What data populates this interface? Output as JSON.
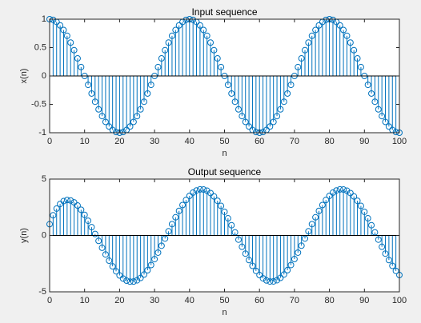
{
  "chart_data": [
    {
      "type": "stem",
      "title": "Input sequence",
      "xlabel": "n",
      "ylabel": "x(n)",
      "color": "#0072bd",
      "x": [
        0,
        1,
        2,
        3,
        4,
        5,
        6,
        7,
        8,
        9,
        10,
        11,
        12,
        13,
        14,
        15,
        16,
        17,
        18,
        19,
        20,
        21,
        22,
        23,
        24,
        25,
        26,
        27,
        28,
        29,
        30,
        31,
        32,
        33,
        34,
        35,
        36,
        37,
        38,
        39,
        40,
        41,
        42,
        43,
        44,
        45,
        46,
        47,
        48,
        49,
        50,
        51,
        52,
        53,
        54,
        55,
        56,
        57,
        58,
        59,
        60,
        61,
        62,
        63,
        64,
        65,
        66,
        67,
        68,
        69,
        70,
        71,
        72,
        73,
        74,
        75,
        76,
        77,
        78,
        79,
        80,
        81,
        82,
        83,
        84,
        85,
        86,
        87,
        88,
        89,
        90,
        91,
        92,
        93,
        94,
        95,
        96,
        97,
        98,
        99,
        100
      ],
      "values": [
        1,
        0.988,
        0.951,
        0.891,
        0.809,
        0.707,
        0.588,
        0.454,
        0.309,
        0.156,
        0,
        -0.156,
        -0.309,
        -0.454,
        -0.588,
        -0.707,
        -0.809,
        -0.891,
        -0.951,
        -0.988,
        -1,
        -0.988,
        -0.951,
        -0.891,
        -0.809,
        -0.707,
        -0.588,
        -0.454,
        -0.309,
        -0.156,
        0,
        0.156,
        0.309,
        0.454,
        0.588,
        0.707,
        0.809,
        0.891,
        0.951,
        0.988,
        1,
        0.988,
        0.951,
        0.891,
        0.809,
        0.707,
        0.588,
        0.454,
        0.309,
        0.156,
        0,
        -0.156,
        -0.309,
        -0.454,
        -0.588,
        -0.707,
        -0.809,
        -0.891,
        -0.951,
        -0.988,
        -1,
        -0.988,
        -0.951,
        -0.891,
        -0.809,
        -0.707,
        -0.588,
        -0.454,
        -0.309,
        -0.156,
        0,
        0.156,
        0.309,
        0.454,
        0.588,
        0.707,
        0.809,
        0.891,
        0.951,
        0.988,
        1,
        0.988,
        0.951,
        0.891,
        0.809,
        0.707,
        0.588,
        0.454,
        0.309,
        0.156,
        0,
        -0.156,
        -0.309,
        -0.454,
        -0.588,
        -0.707,
        -0.809,
        -0.891,
        -0.951,
        -0.988,
        -1
      ],
      "xlim": [
        0,
        100
      ],
      "xticks": [
        0,
        10,
        20,
        30,
        40,
        50,
        60,
        70,
        80,
        90,
        100
      ],
      "ylim": [
        -1,
        1
      ],
      "yticks": [
        -1,
        -0.5,
        0,
        0.5,
        1
      ]
    },
    {
      "type": "stem",
      "title": "Output sequence",
      "xlabel": "n",
      "ylabel": "y(n)",
      "color": "#0072bd",
      "x": [
        0,
        1,
        2,
        3,
        4,
        5,
        6,
        7,
        8,
        9,
        10,
        11,
        12,
        13,
        14,
        15,
        16,
        17,
        18,
        19,
        20,
        21,
        22,
        23,
        24,
        25,
        26,
        27,
        28,
        29,
        30,
        31,
        32,
        33,
        34,
        35,
        36,
        37,
        38,
        39,
        40,
        41,
        42,
        43,
        44,
        45,
        46,
        47,
        48,
        49,
        50,
        51,
        52,
        53,
        54,
        55,
        56,
        57,
        58,
        59,
        60,
        61,
        62,
        63,
        64,
        65,
        66,
        67,
        68,
        69,
        70,
        71,
        72,
        73,
        74,
        75,
        76,
        77,
        78,
        79,
        80,
        81,
        82,
        83,
        84,
        85,
        86,
        87,
        88,
        89,
        90,
        91,
        92,
        93,
        94,
        95,
        96,
        97,
        98,
        99,
        100
      ],
      "values": [
        1,
        1.788,
        2.381,
        2.796,
        3.046,
        3.144,
        3.103,
        2.936,
        2.658,
        2.282,
        1.826,
        1.305,
        0.735,
        0.134,
        -0.481,
        -1.092,
        -1.683,
        -2.237,
        -2.741,
        -3.181,
        -3.545,
        -3.824,
        -4.01,
        -4.099,
        -4.088,
        -3.977,
        -3.77,
        -3.47,
        -3.085,
        -2.624,
        -2.099,
        -1.523,
        -0.909,
        -0.273,
        0.37,
        1.003,
        1.611,
        2.18,
        2.695,
        3.144,
        3.515,
        3.8,
        3.991,
        4.084,
        4.076,
        3.968,
        3.762,
        3.464,
        3.08,
        2.62,
        2.096,
        1.521,
        0.908,
        0.272,
        -0.37,
        -1.003,
        -1.611,
        -2.18,
        -2.695,
        -3.144,
        -3.515,
        -3.8,
        -3.991,
        -4.084,
        -4.076,
        -3.968,
        -3.762,
        -3.464,
        -3.08,
        -2.62,
        -2.096,
        -1.521,
        -0.908,
        -0.272,
        0.37,
        1.003,
        1.611,
        2.18,
        2.695,
        3.144,
        3.515,
        3.8,
        3.991,
        4.084,
        4.076,
        3.968,
        3.762,
        3.464,
        3.08,
        2.62,
        2.096,
        1.521,
        0.908,
        0.272,
        -0.37,
        -1.003,
        -1.611,
        -2.18,
        -2.695,
        -3.144,
        -3.515
      ],
      "xlim": [
        0,
        100
      ],
      "xticks": [
        0,
        10,
        20,
        30,
        40,
        50,
        60,
        70,
        80,
        90,
        100
      ],
      "ylim": [
        -5,
        5
      ],
      "yticks": [
        -5,
        0,
        5
      ]
    }
  ]
}
